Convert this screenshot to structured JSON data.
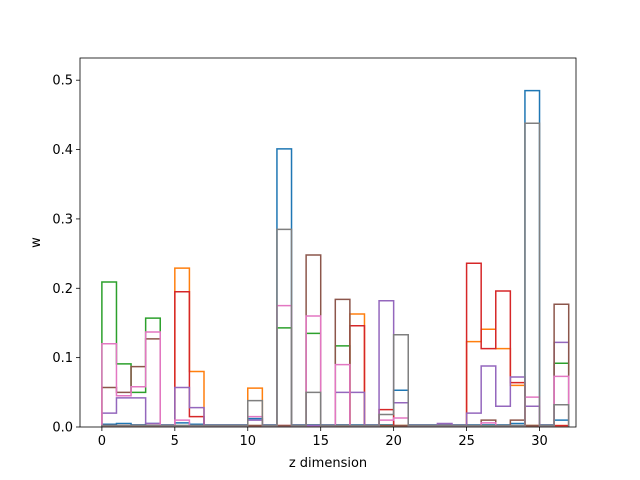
{
  "chart_data": {
    "type": "step",
    "xlabel": "z dimension",
    "ylabel": "w",
    "xlim": [
      -1.5,
      32.5
    ],
    "ylim": [
      0,
      0.532
    ],
    "xticks": [
      0,
      5,
      10,
      15,
      20,
      25,
      30
    ],
    "yticks": [
      0.0,
      0.1,
      0.2,
      0.3,
      0.4,
      0.5
    ],
    "ytick_labels": [
      "0.0",
      "0.1",
      "0.2",
      "0.3",
      "0.4",
      "0.5"
    ],
    "grid": false,
    "bin_edges": [
      0,
      1,
      2,
      3,
      4,
      5,
      6,
      7,
      8,
      9,
      10,
      11,
      12,
      13,
      14,
      15,
      16,
      17,
      18,
      19,
      20,
      21,
      22,
      23,
      24,
      25,
      26,
      27,
      28,
      29,
      30,
      31,
      32
    ],
    "series": [
      {
        "color": "#1f77b4",
        "values": [
          0.004,
          0.005,
          0.003,
          0.005,
          0.003,
          0.006,
          0.004,
          0.003,
          0.003,
          0.003,
          0.012,
          0.003,
          0.401,
          0.003,
          0.003,
          0.003,
          0.003,
          0.003,
          0.003,
          0.003,
          0.053,
          0.003,
          0.003,
          0.003,
          0.003,
          0.003,
          0.003,
          0.003,
          0.005,
          0.485,
          0.003,
          0.01
        ]
      },
      {
        "color": "#ff7f0e",
        "values": [
          0.002,
          0.002,
          0.002,
          0.002,
          0.002,
          0.229,
          0.08,
          0.002,
          0.002,
          0.002,
          0.056,
          0.002,
          0.002,
          0.002,
          0.002,
          0.002,
          0.002,
          0.163,
          0.002,
          0.002,
          0.002,
          0.002,
          0.002,
          0.002,
          0.002,
          0.123,
          0.141,
          0.113,
          0.06,
          0.002,
          0.002,
          0.002
        ]
      },
      {
        "color": "#2ca02c",
        "values": [
          0.209,
          0.091,
          0.05,
          0.157,
          0.002,
          0.002,
          0.002,
          0.002,
          0.002,
          0.002,
          0.002,
          0.002,
          0.143,
          0.002,
          0.135,
          0.002,
          0.117,
          0.002,
          0.002,
          0.002,
          0.002,
          0.002,
          0.002,
          0.002,
          0.002,
          0.002,
          0.002,
          0.002,
          0.002,
          0.002,
          0.002,
          0.092
        ]
      },
      {
        "color": "#d62728",
        "values": [
          0.002,
          0.002,
          0.002,
          0.002,
          0.002,
          0.195,
          0.015,
          0.002,
          0.002,
          0.002,
          0.002,
          0.002,
          0.002,
          0.002,
          0.002,
          0.002,
          0.002,
          0.146,
          0.002,
          0.025,
          0.002,
          0.002,
          0.002,
          0.002,
          0.002,
          0.236,
          0.113,
          0.196,
          0.064,
          0.002,
          0.002,
          0.002
        ]
      },
      {
        "color": "#9467bd",
        "values": [
          0.02,
          0.042,
          0.042,
          0.005,
          0.002,
          0.057,
          0.028,
          0.002,
          0.002,
          0.002,
          0.01,
          0.002,
          0.002,
          0.002,
          0.002,
          0.002,
          0.05,
          0.05,
          0.002,
          0.182,
          0.035,
          0.002,
          0.002,
          0.005,
          0.002,
          0.02,
          0.088,
          0.03,
          0.072,
          0.03,
          0.002,
          0.122
        ]
      },
      {
        "color": "#8c564b",
        "values": [
          0.057,
          0.05,
          0.087,
          0.127,
          0.002,
          0.002,
          0.002,
          0.002,
          0.002,
          0.002,
          0.002,
          0.002,
          0.002,
          0.002,
          0.248,
          0.002,
          0.184,
          0.002,
          0.002,
          0.002,
          0.002,
          0.002,
          0.002,
          0.002,
          0.002,
          0.002,
          0.01,
          0.002,
          0.01,
          0.002,
          0.002,
          0.177
        ]
      },
      {
        "color": "#e377c2",
        "values": [
          0.12,
          0.045,
          0.058,
          0.137,
          0.002,
          0.01,
          0.002,
          0.002,
          0.002,
          0.002,
          0.015,
          0.002,
          0.175,
          0.002,
          0.16,
          0.002,
          0.09,
          0.002,
          0.002,
          0.01,
          0.013,
          0.002,
          0.002,
          0.002,
          0.002,
          0.002,
          0.006,
          0.002,
          0.002,
          0.043,
          0.002,
          0.073
        ]
      },
      {
        "color": "#7f7f7f",
        "values": [
          0.002,
          0.002,
          0.002,
          0.002,
          0.002,
          0.002,
          0.002,
          0.002,
          0.002,
          0.002,
          0.038,
          0.002,
          0.285,
          0.002,
          0.05,
          0.002,
          0.002,
          0.002,
          0.002,
          0.018,
          0.133,
          0.002,
          0.002,
          0.002,
          0.002,
          0.002,
          0.002,
          0.002,
          0.002,
          0.438,
          0.002,
          0.032
        ]
      }
    ]
  }
}
